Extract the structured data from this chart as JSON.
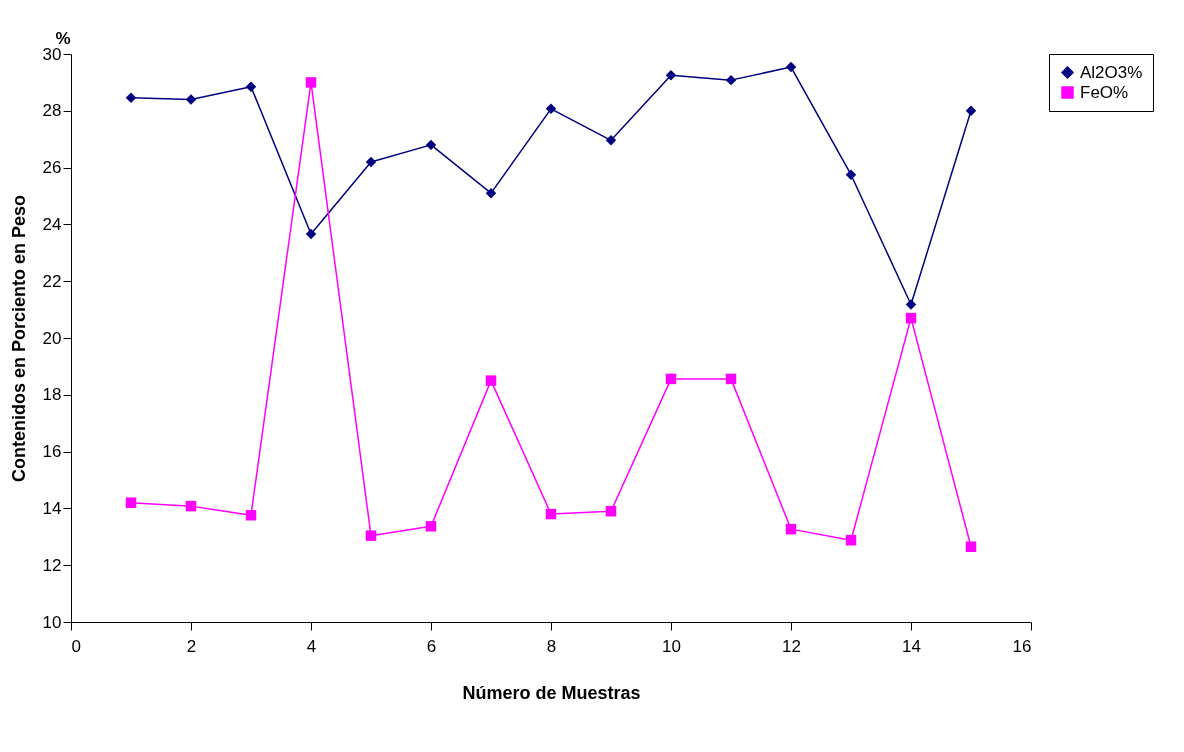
{
  "chart_data": {
    "type": "line",
    "xlabel": "Número de Muestras",
    "ylabel": "Contenidos en Porciento en Peso",
    "annotations": [
      "%"
    ],
    "x": [
      1,
      2,
      3,
      4,
      5,
      6,
      7,
      8,
      9,
      10,
      11,
      12,
      13,
      14,
      15
    ],
    "series": [
      {
        "name": "Al2O3%",
        "color": "#000080",
        "marker": "diamond",
        "values": [
          28.46,
          28.4,
          28.85,
          23.66,
          26.2,
          26.8,
          25.1,
          28.07,
          26.96,
          29.25,
          29.08,
          29.54,
          25.75,
          21.18,
          28.0
        ]
      },
      {
        "name": "FeO%",
        "color": "#ff00ff",
        "marker": "square",
        "values": [
          14.2,
          14.08,
          13.76,
          29.0,
          13.04,
          13.37,
          18.5,
          13.8,
          13.9,
          18.56,
          18.56,
          13.27,
          12.88,
          20.7,
          12.65
        ]
      }
    ],
    "xlim": [
      0,
      16
    ],
    "xticks": [
      0,
      2,
      4,
      6,
      8,
      10,
      12,
      14,
      16
    ],
    "ylim": [
      10,
      30
    ],
    "yticks": [
      10,
      12,
      14,
      16,
      18,
      20,
      22,
      24,
      26,
      28,
      30
    ],
    "grid": false,
    "legend": "right",
    "line_style": "solid"
  }
}
